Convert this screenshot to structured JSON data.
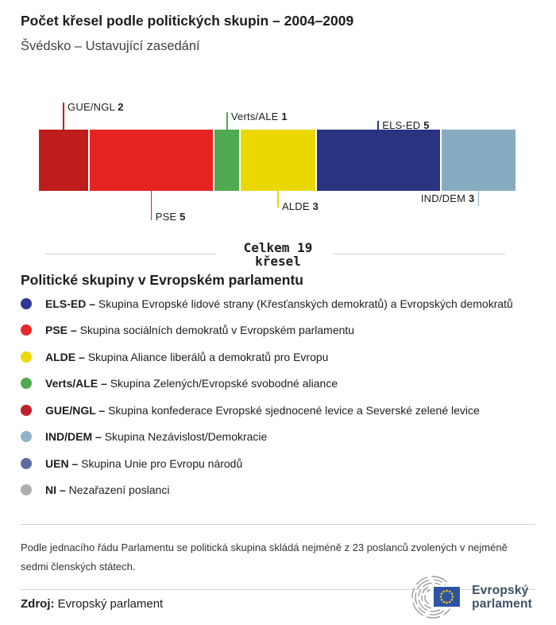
{
  "header": {
    "title": "Počet křesel podle politických skupin – 2004–2009",
    "subtitle": "Švédsko – Ustavující zasedání"
  },
  "chart_data": {
    "type": "bar",
    "variant": "stacked-seat-bar",
    "title": "Počet křesel podle politických skupin – 2004–2009",
    "subtitle": "Švédsko – Ustavující zasedání",
    "total_seats": 19,
    "total_label": {
      "line1": "Celkem 19",
      "line2": "křesel"
    },
    "segments": [
      {
        "name": "GUE/NGL",
        "seats": 2,
        "color": "#bf1c1c"
      },
      {
        "name": "PSE",
        "seats": 5,
        "color": "#e52422"
      },
      {
        "name": "Verts/ALE",
        "seats": 1,
        "color": "#4faa51"
      },
      {
        "name": "ALDE",
        "seats": 3,
        "color": "#ebd800"
      },
      {
        "name": "ELS-ED",
        "seats": 5,
        "color": "#293380"
      },
      {
        "name": "IND/DEM",
        "seats": 3,
        "color": "#87abc1"
      }
    ]
  },
  "legend": {
    "heading": "Politické skupiny v Evropském parlamentu",
    "separator": "–",
    "items": [
      {
        "abbr": "ELS-ED",
        "desc": "Skupina Evropské lidové strany (Křesťanských demokratů) a Evropských demokratů",
        "color": "#2b3990"
      },
      {
        "abbr": "PSE",
        "desc": "Skupina sociálních demokratů v Evropském parlamentu",
        "color": "#e7282c"
      },
      {
        "abbr": "ALDE",
        "desc": "Skupina Aliance liberálů a demokratů pro Evropu",
        "color": "#f0d900"
      },
      {
        "abbr": "Verts/ALE",
        "desc": "Skupina Zelených/Evropské svobodné aliance",
        "color": "#4faa51"
      },
      {
        "abbr": "GUE/NGL",
        "desc": "Skupina konfederace Evropské sjednocené levice a Severské zelené levice",
        "color": "#c2202a"
      },
      {
        "abbr": "IND/DEM",
        "desc": "Skupina Nezávislost/Demokracie",
        "color": "#8fb2c8"
      },
      {
        "abbr": "UEN",
        "desc": "Skupina Unie pro Evropu národů",
        "color": "#5a6d9e"
      },
      {
        "abbr": "NI",
        "desc": "Nezařazení poslanci",
        "color": "#adadad"
      }
    ]
  },
  "note": "Podle jednacího řádu Parlamentu se politická skupina skládá nejméně z 23 poslanců zvolených v nejméně sedmi členských státech.",
  "source": {
    "label": "Zdroj:",
    "value": "Evropský parlament"
  },
  "logo": {
    "line1": "Evropský",
    "line2": "parlament"
  },
  "colors": {
    "text": "#1d1d1b",
    "muted_text": "#3f3f3e",
    "divider": "#cfcfcf",
    "logo_text": "#3d5265",
    "flag_blue": "#2d54a4",
    "star_yellow": "#f5c800"
  }
}
